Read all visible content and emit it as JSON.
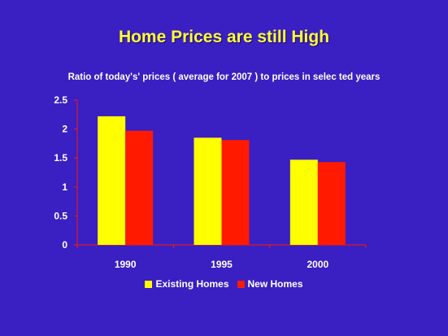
{
  "slide": {
    "title": "Home Prices are still High"
  },
  "chart_data": {
    "type": "bar",
    "title": "Ratio of today's' prices ( average for 2007 ) to prices in selec ted years",
    "categories": [
      "1990",
      "1995",
      "2000"
    ],
    "series": [
      {
        "name": "Existing Homes",
        "values": [
          2.22,
          1.85,
          1.47
        ],
        "color": "#ffff00"
      },
      {
        "name": "New Homes",
        "values": [
          1.97,
          1.81,
          1.43
        ],
        "color": "#ff1a00"
      }
    ],
    "ylim": [
      0,
      2.5
    ],
    "yticks": [
      "0",
      "0.5",
      "1",
      "1.5",
      "2",
      "2.5"
    ],
    "grid": false,
    "legend_position": "bottom-center",
    "plot_background": "#3a1fc2",
    "axis_color": "#ff1a00"
  }
}
